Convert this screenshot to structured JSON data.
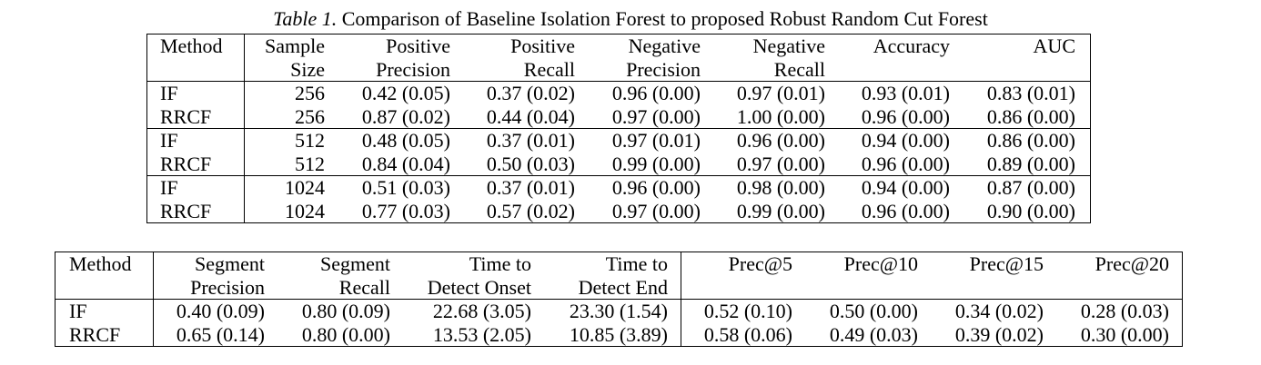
{
  "caption": {
    "label": "Table 1.",
    "text": "Comparison of Baseline Isolation Forest to proposed Robust Random Cut Forest"
  },
  "table1": {
    "headers": {
      "method": "Method",
      "sample_size_1": "Sample",
      "sample_size_2": "Size",
      "pos_precision_1": "Positive",
      "pos_precision_2": "Precision",
      "pos_recall_1": "Positive",
      "pos_recall_2": "Recall",
      "neg_precision_1": "Negative",
      "neg_precision_2": "Precision",
      "neg_recall_1": "Negative",
      "neg_recall_2": "Recall",
      "accuracy": "Accuracy",
      "auc": "AUC"
    },
    "rows": [
      {
        "method": "IF",
        "size": "256",
        "pp": "0.42 (0.05)",
        "pr": "0.37 (0.02)",
        "np": "0.96 (0.00)",
        "nr": "0.97 (0.01)",
        "acc": "0.93 (0.01)",
        "auc": "0.83 (0.01)"
      },
      {
        "method": "RRCF",
        "size": "256",
        "pp": "0.87 (0.02)",
        "pr": "0.44 (0.04)",
        "np": "0.97 (0.00)",
        "nr": "1.00 (0.00)",
        "acc": "0.96 (0.00)",
        "auc": "0.86 (0.00)"
      },
      {
        "method": "IF",
        "size": "512",
        "pp": "0.48 (0.05)",
        "pr": "0.37 (0.01)",
        "np": "0.97 (0.01)",
        "nr": "0.96 (0.00)",
        "acc": "0.94 (0.00)",
        "auc": "0.86 (0.00)"
      },
      {
        "method": "RRCF",
        "size": "512",
        "pp": "0.84 (0.04)",
        "pr": "0.50 (0.03)",
        "np": "0.99 (0.00)",
        "nr": "0.97 (0.00)",
        "acc": "0.96 (0.00)",
        "auc": "0.89 (0.00)"
      },
      {
        "method": "IF",
        "size": "1024",
        "pp": "0.51 (0.03)",
        "pr": "0.37 (0.01)",
        "np": "0.96 (0.00)",
        "nr": "0.98 (0.00)",
        "acc": "0.94 (0.00)",
        "auc": "0.87 (0.00)"
      },
      {
        "method": "RRCF",
        "size": "1024",
        "pp": "0.77 (0.03)",
        "pr": "0.57 (0.02)",
        "np": "0.97 (0.00)",
        "nr": "0.99 (0.00)",
        "acc": "0.96 (0.00)",
        "auc": "0.90 (0.00)"
      }
    ]
  },
  "table2": {
    "headers": {
      "method": "Method",
      "seg_precision_1": "Segment",
      "seg_precision_2": "Precision",
      "seg_recall_1": "Segment",
      "seg_recall_2": "Recall",
      "onset_1": "Time to",
      "onset_2": "Detect Onset",
      "end_1": "Time to",
      "end_2": "Detect End",
      "prec5": "Prec@5",
      "prec10": "Prec@10",
      "prec15": "Prec@15",
      "prec20": "Prec@20"
    },
    "rows": [
      {
        "method": "IF",
        "sp": "0.40 (0.09)",
        "sr": "0.80 (0.09)",
        "onset": "22.68 (3.05)",
        "end": "23.30 (1.54)",
        "p5": "0.52 (0.10)",
        "p10": "0.50 (0.00)",
        "p15": "0.34 (0.02)",
        "p20": "0.28 (0.03)"
      },
      {
        "method": "RRCF",
        "sp": "0.65 (0.14)",
        "sr": "0.80 (0.00)",
        "onset": "13.53 (2.05)",
        "end": "10.85 (3.89)",
        "p5": "0.58 (0.06)",
        "p10": "0.49 (0.03)",
        "p15": "0.39 (0.02)",
        "p20": "0.30 (0.00)"
      }
    ]
  }
}
